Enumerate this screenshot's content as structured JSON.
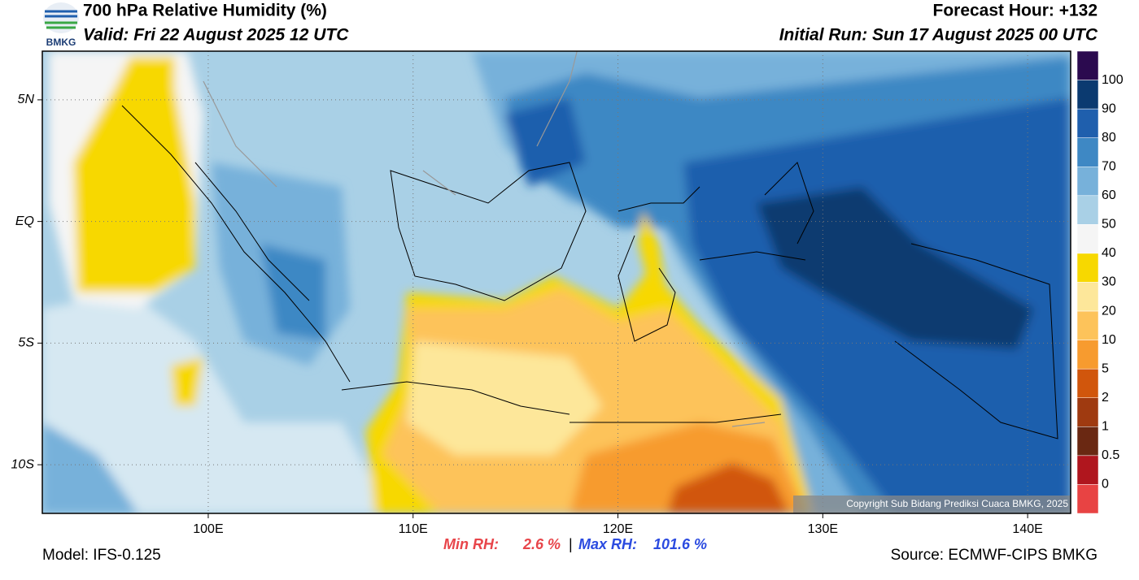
{
  "header": {
    "title": "700 hPa Relative Humidity (%)",
    "valid": "Valid: Fri 22 August 2025 12 UTC",
    "forecast_hour": "Forecast Hour: +132",
    "initial_run": "Initial Run: Sun 17 August 2025 00 UTC",
    "logo_text": "BMKG"
  },
  "map": {
    "xlim": [
      91.9,
      142.1
    ],
    "ylim": [
      -12,
      7
    ],
    "xticks": [
      {
        "value": 100,
        "label": "100E"
      },
      {
        "value": 110,
        "label": "110E"
      },
      {
        "value": 120,
        "label": "120E"
      },
      {
        "value": 130,
        "label": "130E"
      },
      {
        "value": 140,
        "label": "140E"
      }
    ],
    "yticks": [
      {
        "value": 5,
        "label": "5N"
      },
      {
        "value": 0,
        "label": "EQ"
      },
      {
        "value": -5,
        "label": "5S"
      },
      {
        "value": -10,
        "label": "10S"
      }
    ],
    "copyright": "Copyright Sub Bidang Prediksi Cuaca BMKG, 2025"
  },
  "colorbar": {
    "levels": [
      100,
      90,
      80,
      70,
      60,
      50,
      40,
      30,
      20,
      10,
      5,
      2,
      1,
      0.5,
      0
    ],
    "colors": [
      "#2b0a4f",
      "#0b3a70",
      "#1f5fad",
      "#3e88c4",
      "#77b1da",
      "#a9d0e6",
      "#f5f5f5",
      "#f7d800",
      "#fde79a",
      "#fdc35a",
      "#f79b2f",
      "#d1560c",
      "#9f3a10",
      "#6a2812",
      "#b0161e",
      "#e84343"
    ]
  },
  "footer": {
    "model": "Model: IFS-0.125",
    "min_label": "Min RH:",
    "min_value": "2.6 %",
    "separator": "|",
    "max_label": "Max RH:",
    "max_value": "101.6 %",
    "source": "Source: ECMWF-CIPS BMKG"
  }
}
